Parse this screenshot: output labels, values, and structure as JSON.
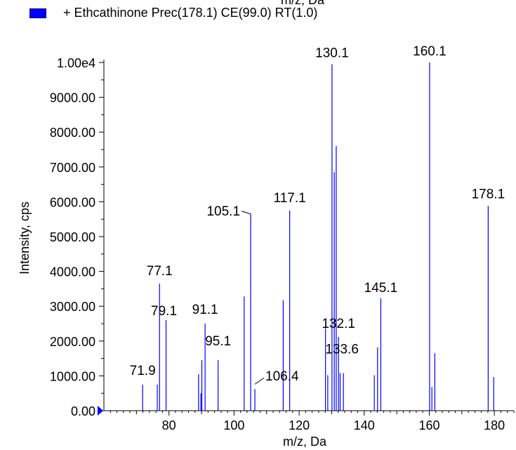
{
  "header": {
    "top_clipped_label": "m/z, Da",
    "legend_label": "+ Ethcathinone Prec(178.1) CE(99.0) RT(1.0)",
    "legend_color": "#0000ff"
  },
  "chart_data": {
    "type": "bar",
    "xlabel": "m/z, Da",
    "ylabel": "Intensity, cps",
    "xlim": [
      60,
      186
    ],
    "ylim": [
      0,
      10000
    ],
    "x_ticks": [
      80,
      100,
      120,
      140,
      160,
      180
    ],
    "x_tick_labels": [
      "80",
      "100",
      "120",
      "140",
      "160",
      "180"
    ],
    "y_ticks": [
      0,
      1000,
      2000,
      3000,
      4000,
      5000,
      6000,
      7000,
      8000,
      9000,
      10000
    ],
    "y_tick_labels": [
      "0.00",
      "1000.00",
      "2000.00",
      "3000.00",
      "4000.00",
      "5000.00",
      "6000.00",
      "7000.00",
      "8000.00",
      "9000.00",
      "1.00e4"
    ],
    "line_color": "#0000ff",
    "series": [
      {
        "x": [
          71.9,
          76.4,
          77.1,
          79.1,
          89.1,
          89.8,
          90.1,
          91.1,
          95.1,
          103.1,
          105.1,
          106.4,
          115.1,
          117.1,
          128.1,
          128.8,
          130.1,
          130.8,
          131.4,
          132.1,
          132.6,
          133.6,
          143.1,
          144.1,
          145.1,
          160.1,
          160.8,
          161.7,
          178.1,
          179.8
        ],
        "values": [
          750,
          750,
          3650,
          2600,
          1050,
          500,
          1450,
          2500,
          1450,
          3280,
          5650,
          620,
          3170,
          5750,
          2370,
          1020,
          9950,
          6850,
          7600,
          2120,
          1080,
          1080,
          1020,
          1820,
          3230,
          10000,
          680,
          1650,
          5880,
          970
        ]
      }
    ],
    "peak_labels": [
      {
        "x": 71.9,
        "text": "71.9"
      },
      {
        "x": 77.1,
        "text": "77.1"
      },
      {
        "x": 79.1,
        "text": "79.1"
      },
      {
        "x": 91.1,
        "text": "91.1"
      },
      {
        "x": 95.1,
        "text": "95.1"
      },
      {
        "x": 105.1,
        "text": "105.1"
      },
      {
        "x": 106.4,
        "text": "106.4"
      },
      {
        "x": 117.1,
        "text": "117.1"
      },
      {
        "x": 130.1,
        "text": "130.1"
      },
      {
        "x": 132.1,
        "text": "132.1"
      },
      {
        "x": 133.6,
        "text": "133.6"
      },
      {
        "x": 145.1,
        "text": "145.1"
      },
      {
        "x": 160.1,
        "text": "160.1"
      },
      {
        "x": 178.1,
        "text": "178.1"
      }
    ]
  }
}
